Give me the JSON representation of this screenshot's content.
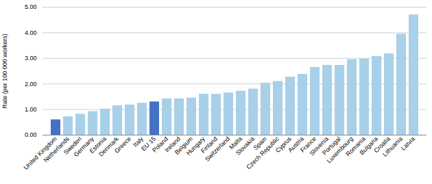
{
  "chart_data": {
    "type": "bar",
    "categories": [
      "United Kingdom",
      "Netherlands",
      "Sweden",
      "Germany",
      "Estonia",
      "Denmark",
      "Greece",
      "Italy",
      "EU 15",
      "Poland",
      "Ireland",
      "Belgium",
      "Hungary",
      "Finland",
      "Switzerland",
      "Malta",
      "Slovakia",
      "Spain",
      "Czech Republic",
      "Cyprus",
      "Austria",
      "France",
      "Slovenia",
      "Portugal",
      "Luxembourg",
      "Romania",
      "Bulgaria",
      "Croatia",
      "Lithuania",
      "Latvia"
    ],
    "values": [
      0.6,
      0.72,
      0.82,
      0.92,
      1.02,
      1.15,
      1.18,
      1.25,
      1.3,
      1.42,
      1.42,
      1.45,
      1.6,
      1.6,
      1.65,
      1.72,
      1.8,
      2.03,
      2.1,
      2.27,
      2.38,
      2.65,
      2.73,
      2.73,
      2.95,
      2.98,
      3.08,
      3.18,
      3.95,
      4.7
    ],
    "colors": [
      "#4472c4",
      "#a8d0e8",
      "#a8d0e8",
      "#a8d0e8",
      "#a8d0e8",
      "#a8d0e8",
      "#a8d0e8",
      "#a8d0e8",
      "#4472c4",
      "#a8d0e8",
      "#a8d0e8",
      "#a8d0e8",
      "#a8d0e8",
      "#a8d0e8",
      "#a8d0e8",
      "#a8d0e8",
      "#a8d0e8",
      "#a8d0e8",
      "#a8d0e8",
      "#a8d0e8",
      "#a8d0e8",
      "#a8d0e8",
      "#a8d0e8",
      "#a8d0e8",
      "#a8d0e8",
      "#a8d0e8",
      "#a8d0e8",
      "#a8d0e8",
      "#a8d0e8",
      "#a8d0e8"
    ],
    "ylabel": "Rate (per 100 000 workers)",
    "ylim": [
      0,
      5.0
    ],
    "yticks": [
      {
        "value": 0,
        "label": "0.00"
      },
      {
        "value": 1,
        "label": "1.00"
      },
      {
        "value": 2,
        "label": "2.00"
      },
      {
        "value": 3,
        "label": "3.00"
      },
      {
        "value": 4,
        "label": "4.00"
      },
      {
        "value": 5,
        "label": "5.00"
      }
    ],
    "grid": true
  }
}
